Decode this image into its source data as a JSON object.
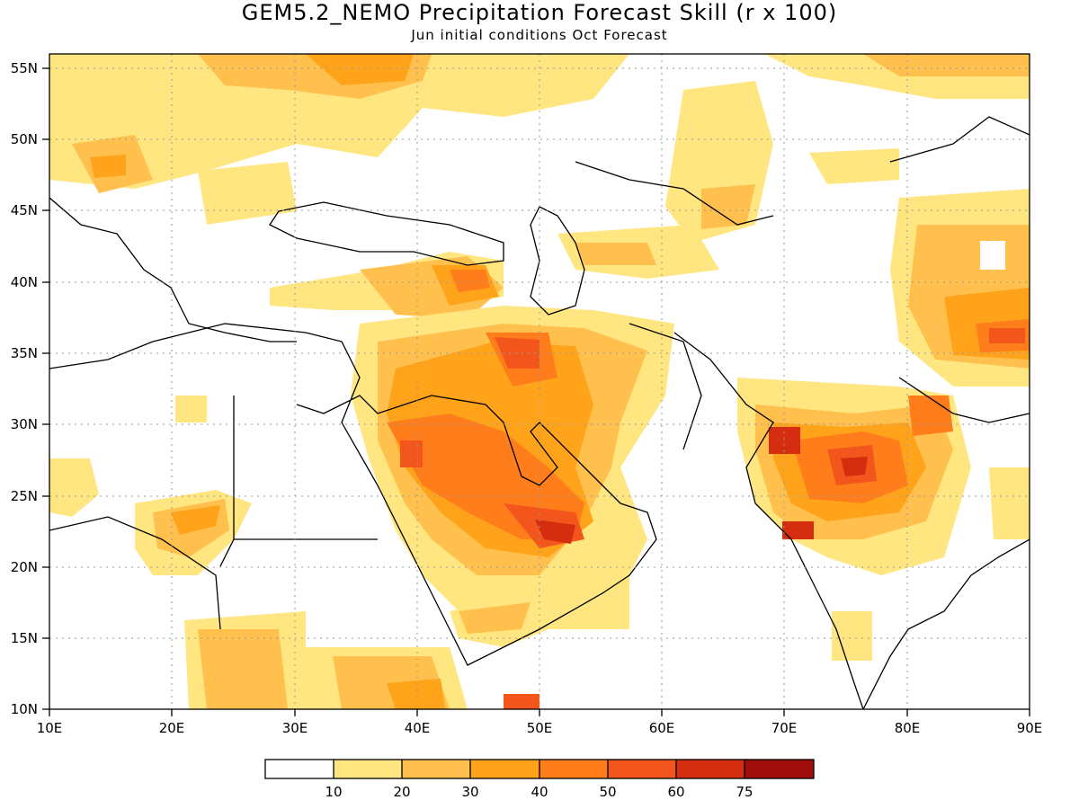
{
  "title": "GEM5.2_NEMO Precipitation Forecast Skill (r x 100)",
  "subtitle": "Jun initial conditions  Oct Forecast",
  "map": {
    "lon_ticks": [
      "10E",
      "20E",
      "30E",
      "40E",
      "50E",
      "60E",
      "70E",
      "80E",
      "90E"
    ],
    "lat_ticks": [
      "55N",
      "50N",
      "45N",
      "40N",
      "35N",
      "30N",
      "25N",
      "20N",
      "15N",
      "10N"
    ],
    "grid_lines": "dotted"
  },
  "colorbar": {
    "tick_labels": [
      "10",
      "20",
      "30",
      "40",
      "50",
      "60",
      "75"
    ],
    "colors": [
      "#ffffff",
      "#ffe680",
      "#ffc04d",
      "#ffa31a",
      "#ff7d1a",
      "#f2561d",
      "#d42d10",
      "#a00d0d"
    ]
  },
  "colors": {
    "land_outline": "#000000",
    "background": "#ffffff"
  }
}
